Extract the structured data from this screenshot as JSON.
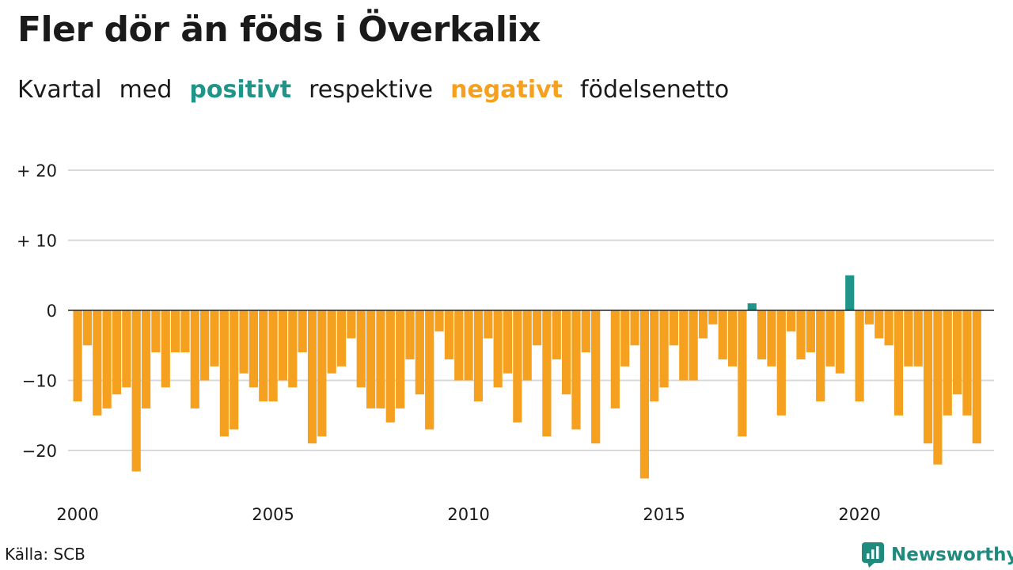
{
  "header": {
    "title": "Fler dör än föds i Överkalix",
    "subtitle": {
      "w1": "Kvartal",
      "w2": "med",
      "positive": "positivt",
      "w3": "respektive",
      "negative": "negativt",
      "w4": "födelsenetto"
    }
  },
  "footer": {
    "source": "Källa: SCB",
    "brand": "Newsworthy"
  },
  "colors": {
    "positive": "#1f9488",
    "negative": "#f5a01e",
    "brand": "#1f8a7e",
    "grid": "#d9d9d9",
    "zero_line": "#222222"
  },
  "chart_data": {
    "type": "bar",
    "title": "Fler dör än föds i Överkalix",
    "subtitle": "Kvartal med positivt respektive negativt födelsenetto",
    "xlabel": "",
    "ylabel": "",
    "x_start": "2000 Q1",
    "x_tick_labels": [
      "2000",
      "2005",
      "2010",
      "2015",
      "2020"
    ],
    "y_tick_labels": [
      "+ 20",
      "+ 10",
      "0",
      "−10",
      "−20"
    ],
    "y_ticks": [
      20,
      10,
      0,
      -10,
      -20
    ],
    "ylim": [
      -25,
      22
    ],
    "grid": true,
    "legend": "none",
    "values": [
      -13,
      -5,
      -15,
      -14,
      -12,
      -11,
      -23,
      -14,
      -6,
      -11,
      -6,
      -6,
      -14,
      -10,
      -8,
      -18,
      -17,
      -9,
      -11,
      -13,
      -13,
      -10,
      -11,
      -6,
      -19,
      -18,
      -9,
      -8,
      -4,
      -11,
      -14,
      -14,
      -16,
      -14,
      -7,
      -12,
      -17,
      -3,
      -7,
      -10,
      -10,
      -13,
      -4,
      -11,
      -9,
      -16,
      -10,
      -5,
      -18,
      -7,
      -12,
      -17,
      -6,
      -19,
      0,
      -14,
      -8,
      -5,
      -24,
      -13,
      -11,
      -5,
      -10,
      -10,
      -4,
      -2,
      -7,
      -8,
      -18,
      1,
      -7,
      -8,
      -15,
      -3,
      -7,
      -6,
      -13,
      -8,
      -9,
      5,
      -13,
      -2,
      -4,
      -5,
      -15,
      -8,
      -8,
      -19,
      -22,
      -15,
      -12,
      -15,
      -19
    ]
  }
}
